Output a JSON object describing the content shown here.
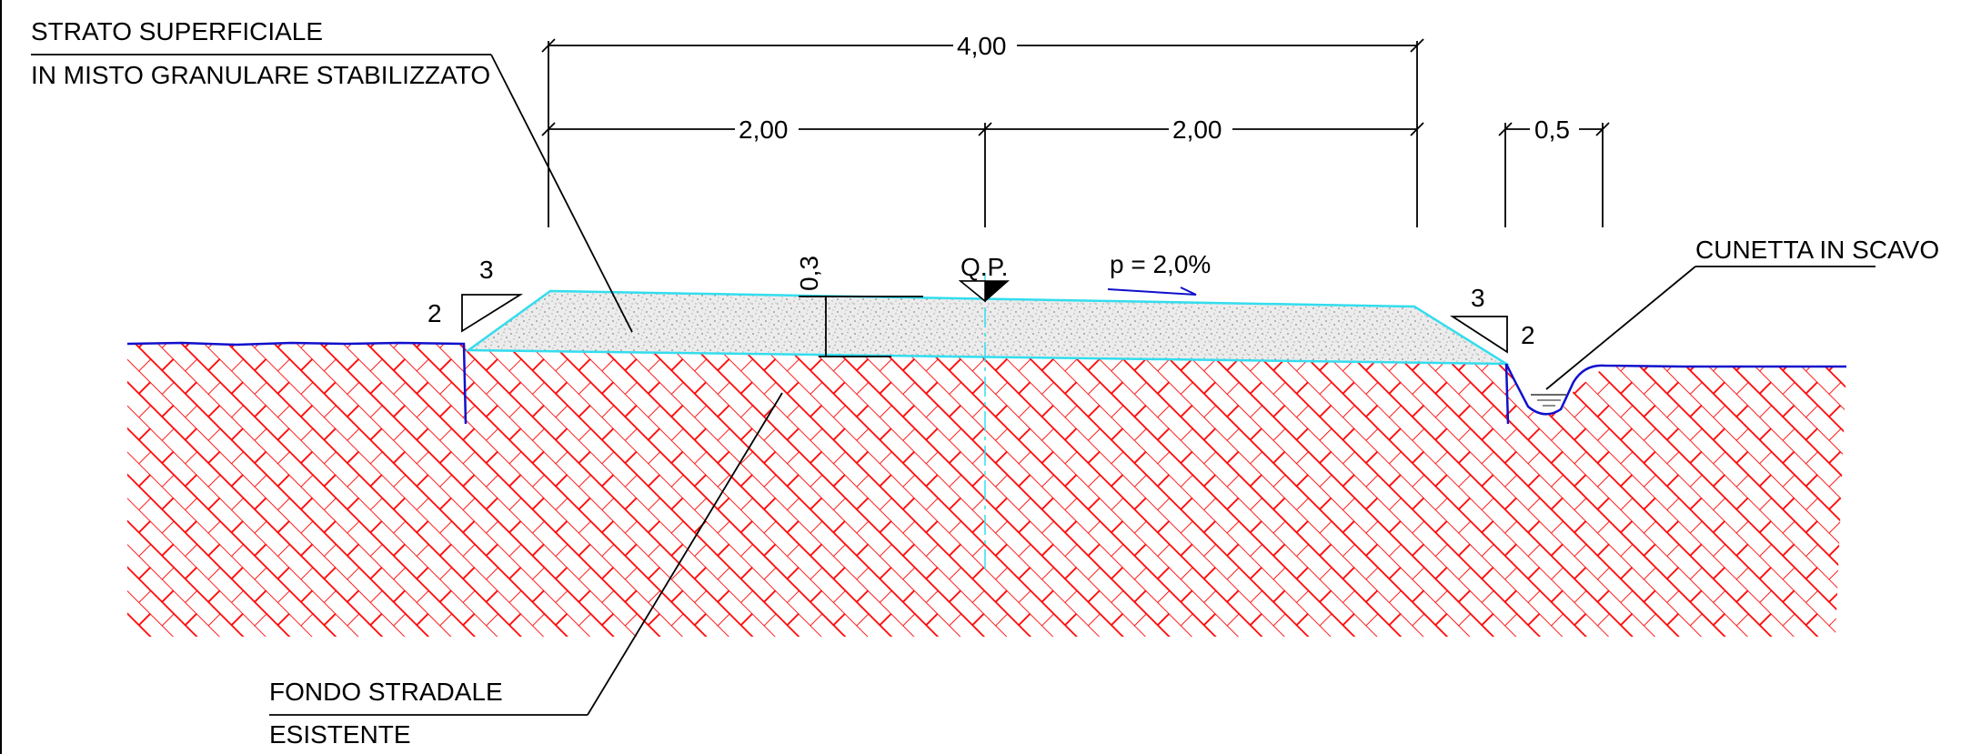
{
  "labels": {
    "strato_line1": "STRATO SUPERFICIALE",
    "strato_line2": "IN MISTO GRANULARE STABILIZZATO",
    "fondo_line1": "FONDO STRADALE",
    "fondo_line2": "ESISTENTE",
    "cunetta": "CUNETTA IN SCAVO",
    "qp": "Q.P.",
    "slope_pct": "p = 2,0%"
  },
  "dimensions": {
    "total_width": "4,00",
    "half_left": "2,00",
    "half_right": "2,00",
    "ditch_width": "0,5",
    "layer_thickness": "0,3"
  },
  "slopes": {
    "left_h": "3",
    "left_v": "2",
    "right_h": "3",
    "right_v": "2"
  },
  "colors": {
    "hatch": "#ff0000",
    "layer_outline": "#33ddee",
    "ground_line": "#1010cc",
    "gravel_fill": "#e6e6e6",
    "dim_line": "#000000"
  }
}
